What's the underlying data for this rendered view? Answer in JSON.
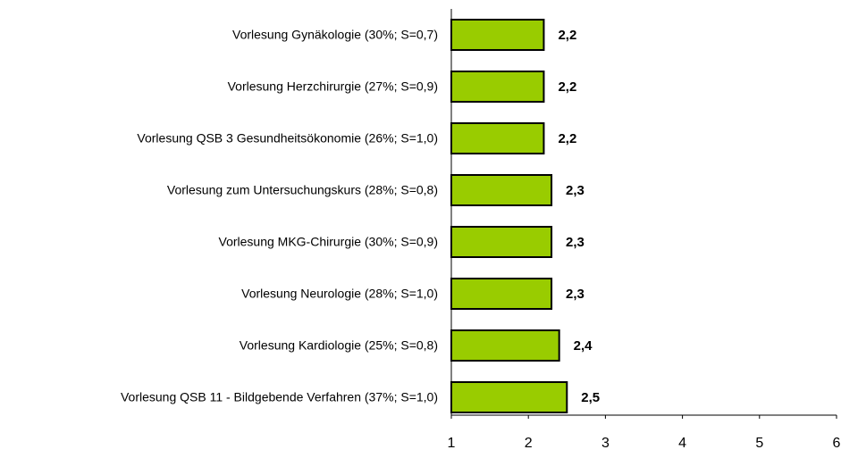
{
  "chart_data": {
    "type": "bar",
    "orientation": "horizontal",
    "categories": [
      "Vorlesung Gynäkologie (30%; S=0,7)",
      "Vorlesung Herzchirurgie (27%; S=0,9)",
      "Vorlesung QSB 3 Gesundheitsökonomie (26%; S=1,0)",
      "Vorlesung zum Untersuchungskurs (28%; S=0,8)",
      "Vorlesung MKG-Chirurgie (30%; S=0,9)",
      "Vorlesung Neurologie (28%; S=1,0)",
      "Vorlesung Kardiologie (25%; S=0,8)",
      "Vorlesung QSB 11 - Bildgebende Verfahren (37%; S=1,0)"
    ],
    "values": [
      2.2,
      2.2,
      2.2,
      2.3,
      2.3,
      2.3,
      2.4,
      2.5
    ],
    "value_labels": [
      "2,2",
      "2,2",
      "2,2",
      "2,3",
      "2,3",
      "2,3",
      "2,4",
      "2,5"
    ],
    "color": "#99cc00",
    "xlim": [
      1,
      6
    ],
    "xticks": [
      1,
      2,
      3,
      4,
      5,
      6
    ],
    "grid": false
  }
}
